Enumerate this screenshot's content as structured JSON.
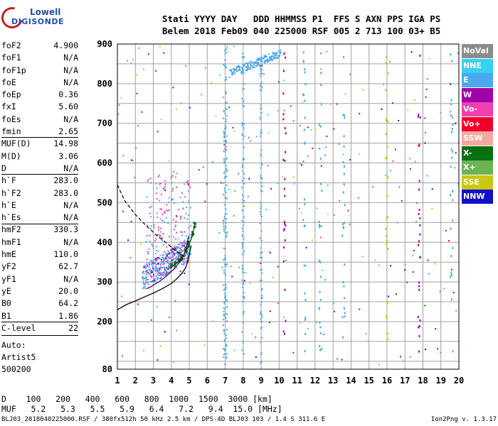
{
  "logo": {
    "line1": "Lowell",
    "line2": "DIGISONDE"
  },
  "header": {
    "line1": "Stati YYYY DAY   DDD HHMMSS P1  FFS S AXN PPS IGA PS",
    "line2": "Belem 2018 Feb09 040 225000 RSF 005 2 713 100 03+ B5"
  },
  "params": [
    {
      "label": "foF2",
      "value": "4.900"
    },
    {
      "label": "foF1",
      "value": "N/A"
    },
    {
      "label": "foF1p",
      "value": "N/A"
    },
    {
      "label": "foE",
      "value": "N/A"
    },
    {
      "label": "foEp",
      "value": "0.36"
    },
    {
      "label": "fxI",
      "value": "5.60"
    },
    {
      "label": "foEs",
      "value": "N/A"
    },
    {
      "label": "fmin",
      "value": "2.65"
    },
    {
      "label": "MUF(D)",
      "value": "14.98",
      "sep": true
    },
    {
      "label": "M(D)",
      "value": "3.06"
    },
    {
      "label": "D",
      "value": "N/A"
    },
    {
      "label": "h`F",
      "value": "283.0",
      "sep": true
    },
    {
      "label": "h`F2",
      "value": "283.0"
    },
    {
      "label": "h`E",
      "value": "N/A"
    },
    {
      "label": "h`Es",
      "value": "N/A"
    },
    {
      "label": "hmF2",
      "value": "330.3",
      "sep": true
    },
    {
      "label": "hmF1",
      "value": "N/A"
    },
    {
      "label": "hmE",
      "value": "110.0"
    },
    {
      "label": "yF2",
      "value": "62.7"
    },
    {
      "label": "yF1",
      "value": "N/A"
    },
    {
      "label": "yE",
      "value": "20.0"
    },
    {
      "label": "B0",
      "value": "64.2"
    },
    {
      "label": "B1",
      "value": "1.86"
    },
    {
      "label": "C-level",
      "value": "22",
      "sep": true
    }
  ],
  "config": {
    "auto": "Auto:",
    "artist": "Artist5",
    "code": "500200"
  },
  "legend": [
    {
      "label": "NoVal",
      "color": "#8c8c8c"
    },
    {
      "label": "NNE",
      "color": "#36d0f0"
    },
    {
      "label": "E",
      "color": "#4aa8ec"
    },
    {
      "label": "W",
      "color": "#a000a8"
    },
    {
      "label": "Vo-",
      "color": "#f040b0"
    },
    {
      "label": "Vo+",
      "color": "#ee0028"
    },
    {
      "label": "SSW",
      "color": "#f4a8a0"
    },
    {
      "label": "X-",
      "color": "#087010"
    },
    {
      "label": "X+",
      "color": "#6ab454"
    },
    {
      "label": "SSE",
      "color": "#c8c810"
    },
    {
      "label": "NNW",
      "color": "#1010c8"
    }
  ],
  "muf_table": {
    "d_label": "D",
    "distances": [
      "100",
      "200",
      "400",
      "600",
      "800",
      "1000",
      "1500",
      "3000"
    ],
    "d_unit": "[km]",
    "muf_label": "MUF",
    "mufs": [
      "5.2",
      "5.3",
      "5.5",
      "5.9",
      "6.4",
      "7.2",
      "9.4",
      "15.0"
    ],
    "muf_unit": "[MHz]"
  },
  "footer": {
    "left": "BLJ03_2018040225000.RSF / 380fx512h 50 kHz 2.5 km / DPS-4D BLJ03 103 / 1.4 S 311.6 E",
    "right": "Ion2Png v. 1.3.17"
  },
  "chart_data": {
    "type": "scatter",
    "x_ticks": [
      "1",
      "2",
      "3",
      "4",
      "5",
      "6",
      "7",
      "8",
      "9",
      "10",
      "11",
      "12",
      "13",
      "14",
      "15",
      "16",
      "17",
      "18",
      "19",
      "20"
    ],
    "y_ticks": [
      "80",
      "200",
      "300",
      "400",
      "500",
      "600",
      "700",
      "800",
      "900"
    ],
    "xlim": [
      1,
      20
    ],
    "ylim": [
      80,
      900
    ],
    "grid": true,
    "profile_solid": [
      [
        1.0,
        230
      ],
      [
        1.5,
        243
      ],
      [
        2.0,
        252
      ],
      [
        2.5,
        262
      ],
      [
        3.0,
        272
      ],
      [
        3.5,
        283
      ],
      [
        4.0,
        296
      ],
      [
        4.3,
        308
      ],
      [
        4.6,
        322
      ],
      [
        4.8,
        336
      ],
      [
        4.9,
        350
      ],
      [
        5.0,
        368
      ],
      [
        5.1,
        392
      ]
    ],
    "profile_dashed": [
      [
        1.0,
        545
      ],
      [
        1.4,
        505
      ],
      [
        2.0,
        470
      ],
      [
        2.6,
        442
      ],
      [
        3.2,
        417
      ],
      [
        3.8,
        396
      ],
      [
        4.2,
        380
      ],
      [
        4.6,
        368
      ],
      [
        4.9,
        360
      ]
    ],
    "trace_o": [
      [
        2.6,
        283
      ],
      [
        2.8,
        286
      ],
      [
        3.0,
        292
      ],
      [
        3.3,
        300
      ],
      [
        3.6,
        310
      ],
      [
        3.9,
        322
      ],
      [
        4.2,
        335
      ],
      [
        4.5,
        352
      ],
      [
        4.7,
        368
      ],
      [
        4.85,
        388
      ],
      [
        4.95,
        415
      ]
    ],
    "trace_x": [
      [
        4.0,
        338
      ],
      [
        4.2,
        344
      ],
      [
        4.4,
        352
      ],
      [
        4.6,
        362
      ],
      [
        4.8,
        376
      ],
      [
        5.0,
        396
      ],
      [
        5.2,
        420
      ],
      [
        5.3,
        445
      ]
    ]
  }
}
